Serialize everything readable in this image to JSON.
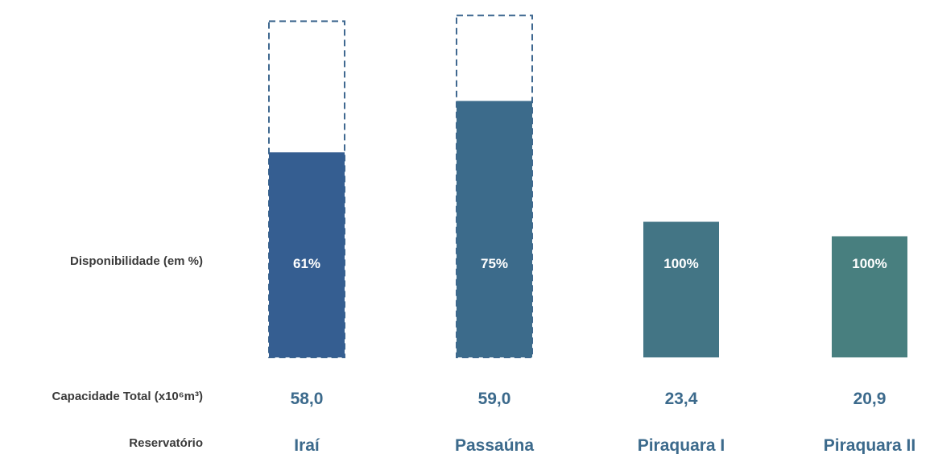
{
  "row_labels": {
    "disponibilidade": "Disponibilidade (em %)",
    "capacidade": "Capacidade Total (x10⁶m³)",
    "reservatorio": "Reservatório"
  },
  "chart_data": {
    "type": "bar",
    "categories": [
      "Iraí",
      "Passaúna",
      "Piraquara I",
      "Piraquara II"
    ],
    "capacity": [
      58.0,
      59.0,
      23.4,
      20.9
    ],
    "capacity_labels": [
      "58,0",
      "59,0",
      "23,4",
      "20,9"
    ],
    "availability_percent": [
      61,
      75,
      100,
      100
    ],
    "availability_labels": [
      "61%",
      "75%",
      "100%",
      "100%"
    ],
    "colors": {
      "bars": [
        "#355e91",
        "#3c6b8b",
        "#437585",
        "#487f7f"
      ],
      "empty_outline": "#3f6890",
      "value_text": "#3c6a8c",
      "bar_label_text": "#ffffff"
    },
    "notes_on_encoding": ""
  }
}
